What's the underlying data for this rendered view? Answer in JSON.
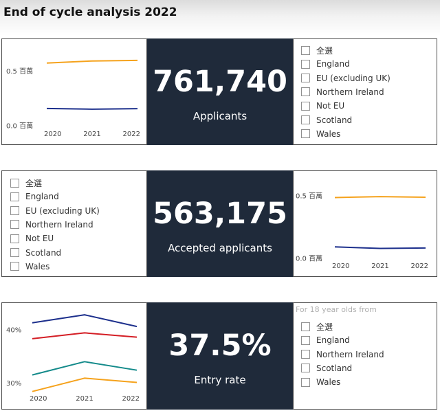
{
  "page": {
    "title": "End of cycle analysis 2022"
  },
  "colors": {
    "orange": "#f5a21c",
    "navy": "#1c2f8c",
    "red": "#d41e25",
    "teal": "#138a8a",
    "kpi_bg": "#1f2a3a"
  },
  "applicants_panel": {
    "kpi": {
      "value": "761,740",
      "label": "Applicants"
    },
    "slicer": {
      "items": [
        "全選",
        "England",
        "EU (excluding UK)",
        "Northern Ireland",
        "Not EU",
        "Scotland",
        "Wales"
      ]
    }
  },
  "accepted_panel": {
    "kpi": {
      "value": "563,175",
      "label": "Accepted applicants"
    },
    "slicer": {
      "items": [
        "全選",
        "England",
        "EU (excluding UK)",
        "Northern Ireland",
        "Not EU",
        "Scotland",
        "Wales"
      ]
    }
  },
  "entry_panel": {
    "kpi": {
      "value": "37.5%",
      "label": "Entry rate"
    },
    "slicer": {
      "hint": "For 18 year olds from",
      "items": [
        "全選",
        "England",
        "Northern Ireland",
        "Scotland",
        "Wales"
      ]
    }
  },
  "chart_data": [
    {
      "type": "line",
      "x": [
        "2020",
        "2021",
        "2022"
      ],
      "ylim": [
        0,
        0.7
      ],
      "yticks": [
        0,
        0.5
      ],
      "ytick_labels": [
        "0.0 百萬",
        "0.5 百萬"
      ],
      "grid": false,
      "series": [
        {
          "color": "#f5a21c",
          "values": [
            0.575,
            0.595,
            0.6
          ]
        },
        {
          "color": "#1c2f8c",
          "values": [
            0.158,
            0.152,
            0.157
          ]
        }
      ]
    },
    {
      "type": "line",
      "x": [
        "2020",
        "2021",
        "2022"
      ],
      "ylim": [
        0,
        0.6
      ],
      "yticks": [
        0,
        0.5
      ],
      "ytick_labels": [
        "0.0 百萬",
        "0.5 百萬"
      ],
      "grid": false,
      "series": [
        {
          "color": "#f5a21c",
          "values": [
            0.487,
            0.495,
            0.49
          ]
        },
        {
          "color": "#1c2f8c",
          "values": [
            0.092,
            0.08,
            0.083
          ]
        }
      ]
    },
    {
      "type": "line",
      "x": [
        "2020",
        "2021",
        "2022"
      ],
      "ylim": [
        25,
        45
      ],
      "yticks": [
        30,
        40
      ],
      "ytick_labels": [
        "30%",
        "40%"
      ],
      "grid": false,
      "series": [
        {
          "color": "#1c2f8c",
          "values": [
            41.3,
            42.8,
            40.6
          ]
        },
        {
          "color": "#d41e25",
          "values": [
            38.3,
            39.4,
            38.6
          ]
        },
        {
          "color": "#138a8a",
          "values": [
            31.5,
            34.0,
            32.4
          ]
        },
        {
          "color": "#f5a21c",
          "values": [
            28.4,
            30.9,
            30.1
          ]
        }
      ]
    }
  ]
}
